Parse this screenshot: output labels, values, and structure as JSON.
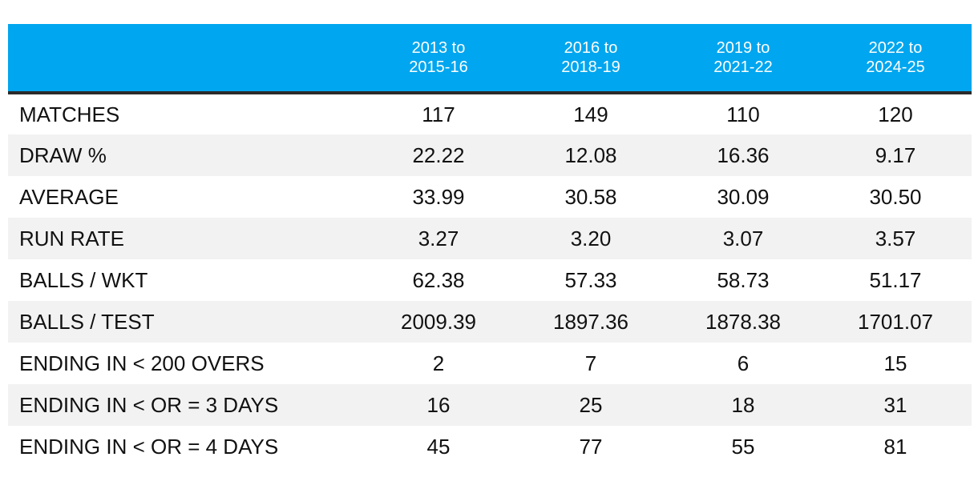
{
  "chart_data": {
    "type": "table",
    "title": "",
    "columns": [
      {
        "line1": "2013 to",
        "line2": "2015-16"
      },
      {
        "line1": "2016 to",
        "line2": "2018-19"
      },
      {
        "line1": "2019 to",
        "line2": "2021-22"
      },
      {
        "line1": "2022 to",
        "line2": "2024-25"
      }
    ],
    "rows": [
      {
        "label": "MATCHES",
        "values": [
          "117",
          "149",
          "110",
          "120"
        ]
      },
      {
        "label": "DRAW %",
        "values": [
          "22.22",
          "12.08",
          "16.36",
          "9.17"
        ]
      },
      {
        "label": "AVERAGE",
        "values": [
          "33.99",
          "30.58",
          "30.09",
          "30.50"
        ]
      },
      {
        "label": "RUN RATE",
        "values": [
          "3.27",
          "3.20",
          "3.07",
          "3.57"
        ]
      },
      {
        "label": "BALLS / WKT",
        "values": [
          "62.38",
          "57.33",
          "58.73",
          "51.17"
        ]
      },
      {
        "label": "BALLS / TEST",
        "values": [
          "2009.39",
          "1897.36",
          "1878.38",
          "1701.07"
        ]
      },
      {
        "label": "ENDING IN < 200 OVERS",
        "values": [
          "2",
          "7",
          "6",
          "15"
        ]
      },
      {
        "label": "ENDING IN < OR = 3 DAYS",
        "values": [
          "16",
          "25",
          "18",
          "31"
        ]
      },
      {
        "label": "ENDING IN < OR = 4 DAYS",
        "values": [
          "45",
          "77",
          "55",
          "81"
        ]
      }
    ]
  },
  "colors": {
    "header_bg": "#00a6ef",
    "header_text": "#ffffff",
    "header_rule": "#2b2b2b",
    "stripe": "#f2f2f2"
  }
}
